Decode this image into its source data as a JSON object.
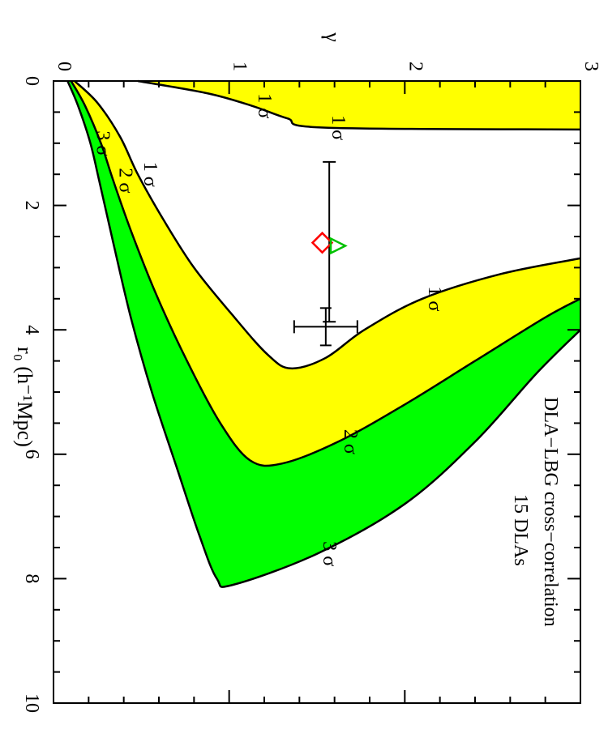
{
  "chart_data": {
    "type": "contour",
    "annotation": [
      "DLA−LBG cross−correlation",
      "15 DLAs"
    ],
    "xlabel": "r₀ (h⁻¹Mpc)",
    "ylabel": "γ",
    "xlim": [
      0,
      10
    ],
    "ylim": [
      0,
      3
    ],
    "x_ticks": [
      0,
      2,
      4,
      6,
      8,
      10
    ],
    "y_ticks": [
      0,
      1,
      2,
      3
    ],
    "colors": {
      "sigma1_fill": "#ffff00",
      "sigma2_fill": "#00ff00",
      "line": "#000000",
      "diamond": "#ff0000",
      "triangle": "#00c000"
    },
    "contours": [
      {
        "label": "1 σ",
        "region": "left",
        "boundary": [
          [
            0.0,
            0.48
          ],
          [
            0.2,
            0.88
          ],
          [
            0.4,
            1.13
          ],
          [
            0.6,
            1.33
          ],
          [
            0.75,
            1.55
          ],
          [
            0.78,
            3.0
          ]
        ]
      },
      {
        "label": "1 σ",
        "region": "main",
        "boundary": [
          [
            0.0,
            0.12
          ],
          [
            0.35,
            0.25
          ],
          [
            0.9,
            0.38
          ],
          [
            1.5,
            0.48
          ],
          [
            2.2,
            0.62
          ],
          [
            3.0,
            0.8
          ],
          [
            3.8,
            1.03
          ],
          [
            4.4,
            1.22
          ],
          [
            4.62,
            1.35
          ],
          [
            4.45,
            1.55
          ],
          [
            4.0,
            1.77
          ],
          [
            3.5,
            2.1
          ],
          [
            3.1,
            2.55
          ],
          [
            2.85,
            3.0
          ]
        ]
      },
      {
        "label": "2 σ",
        "region": "main",
        "boundary": [
          [
            0.0,
            0.1
          ],
          [
            0.4,
            0.18
          ],
          [
            1.0,
            0.27
          ],
          [
            1.6,
            0.34
          ],
          [
            2.4,
            0.44
          ],
          [
            3.4,
            0.58
          ],
          [
            4.5,
            0.76
          ],
          [
            5.5,
            0.95
          ],
          [
            6.1,
            1.12
          ],
          [
            6.15,
            1.3
          ],
          [
            5.8,
            1.62
          ],
          [
            5.2,
            2.0
          ],
          [
            4.5,
            2.4
          ],
          [
            3.8,
            2.8
          ],
          [
            3.5,
            3.0
          ]
        ]
      },
      {
        "label": "3 σ",
        "region": "main",
        "boundary": [
          [
            0.0,
            0.08
          ],
          [
            0.4,
            0.14
          ],
          [
            1.0,
            0.21
          ],
          [
            1.6,
            0.26
          ],
          [
            2.6,
            0.34
          ],
          [
            3.8,
            0.44
          ],
          [
            5.0,
            0.56
          ],
          [
            6.2,
            0.7
          ],
          [
            7.3,
            0.83
          ],
          [
            8.0,
            0.93
          ],
          [
            8.1,
            1.02
          ],
          [
            7.6,
            1.5
          ],
          [
            6.8,
            2.0
          ],
          [
            5.8,
            2.4
          ],
          [
            4.7,
            2.75
          ],
          [
            4.0,
            3.0
          ]
        ]
      }
    ],
    "error_bars": [
      {
        "x": 2.6,
        "y": 1.57,
        "xerr": [
          1.3,
          3.87
        ],
        "yerr": [
          1.57,
          1.57
        ]
      },
      {
        "x": 3.95,
        "y": 1.55,
        "xerr": [
          3.95,
          3.95
        ],
        "yerr": [
          1.37,
          1.73
        ],
        "xlow": 3.65,
        "xhigh": 4.25
      }
    ],
    "markers": [
      {
        "shape": "diamond",
        "color": "#ff0000",
        "x": 2.6,
        "y": 1.53
      },
      {
        "shape": "triangle",
        "color": "#00c000",
        "x": 2.65,
        "y": 1.62
      }
    ]
  }
}
